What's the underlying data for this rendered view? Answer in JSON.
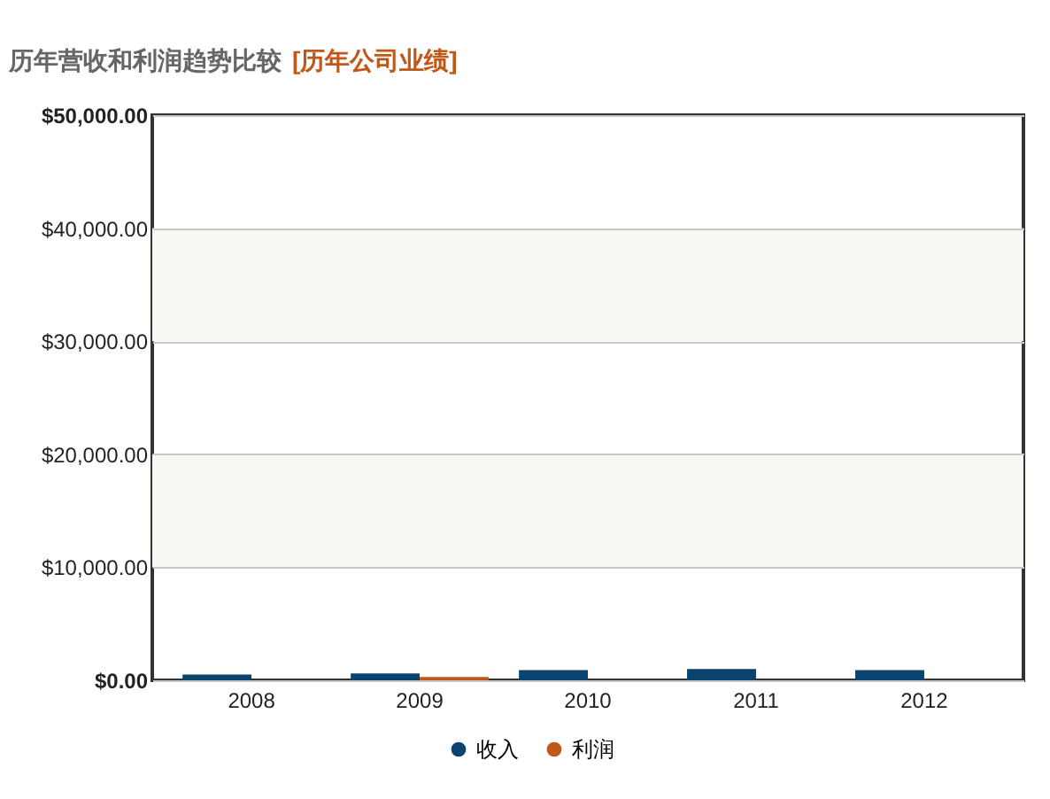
{
  "chart_data": {
    "type": "bar",
    "title": "历年营收和利润趋势比较",
    "subtitle": "[历年公司业绩]",
    "categories": [
      "2008",
      "2009",
      "2010",
      "2011",
      "2012"
    ],
    "series": [
      {
        "name": "收入",
        "color": "#0b436f",
        "values": [
          500,
          600,
          900,
          1000,
          900
        ]
      },
      {
        "name": "利润",
        "color": "#c0581a",
        "values": [
          null,
          300,
          null,
          null,
          null
        ]
      }
    ],
    "ylim": [
      0,
      50000
    ],
    "yticks": [
      {
        "value": 0,
        "label": "$0.00"
      },
      {
        "value": 10000,
        "label": "$10,000.00"
      },
      {
        "value": 20000,
        "label": "$20,000.00"
      },
      {
        "value": 30000,
        "label": "$30,000.00"
      },
      {
        "value": 40000,
        "label": "$40,000.00"
      },
      {
        "value": 50000,
        "label": "$50,000.00"
      }
    ],
    "bands": [
      {
        "axis": "y",
        "from": 30000,
        "to": 40000,
        "color": "#f7f7f3"
      },
      {
        "axis": "y",
        "from": 10000,
        "to": 20000,
        "color": "#f7f7f3"
      }
    ],
    "grid": "y",
    "legend": "bottom"
  }
}
